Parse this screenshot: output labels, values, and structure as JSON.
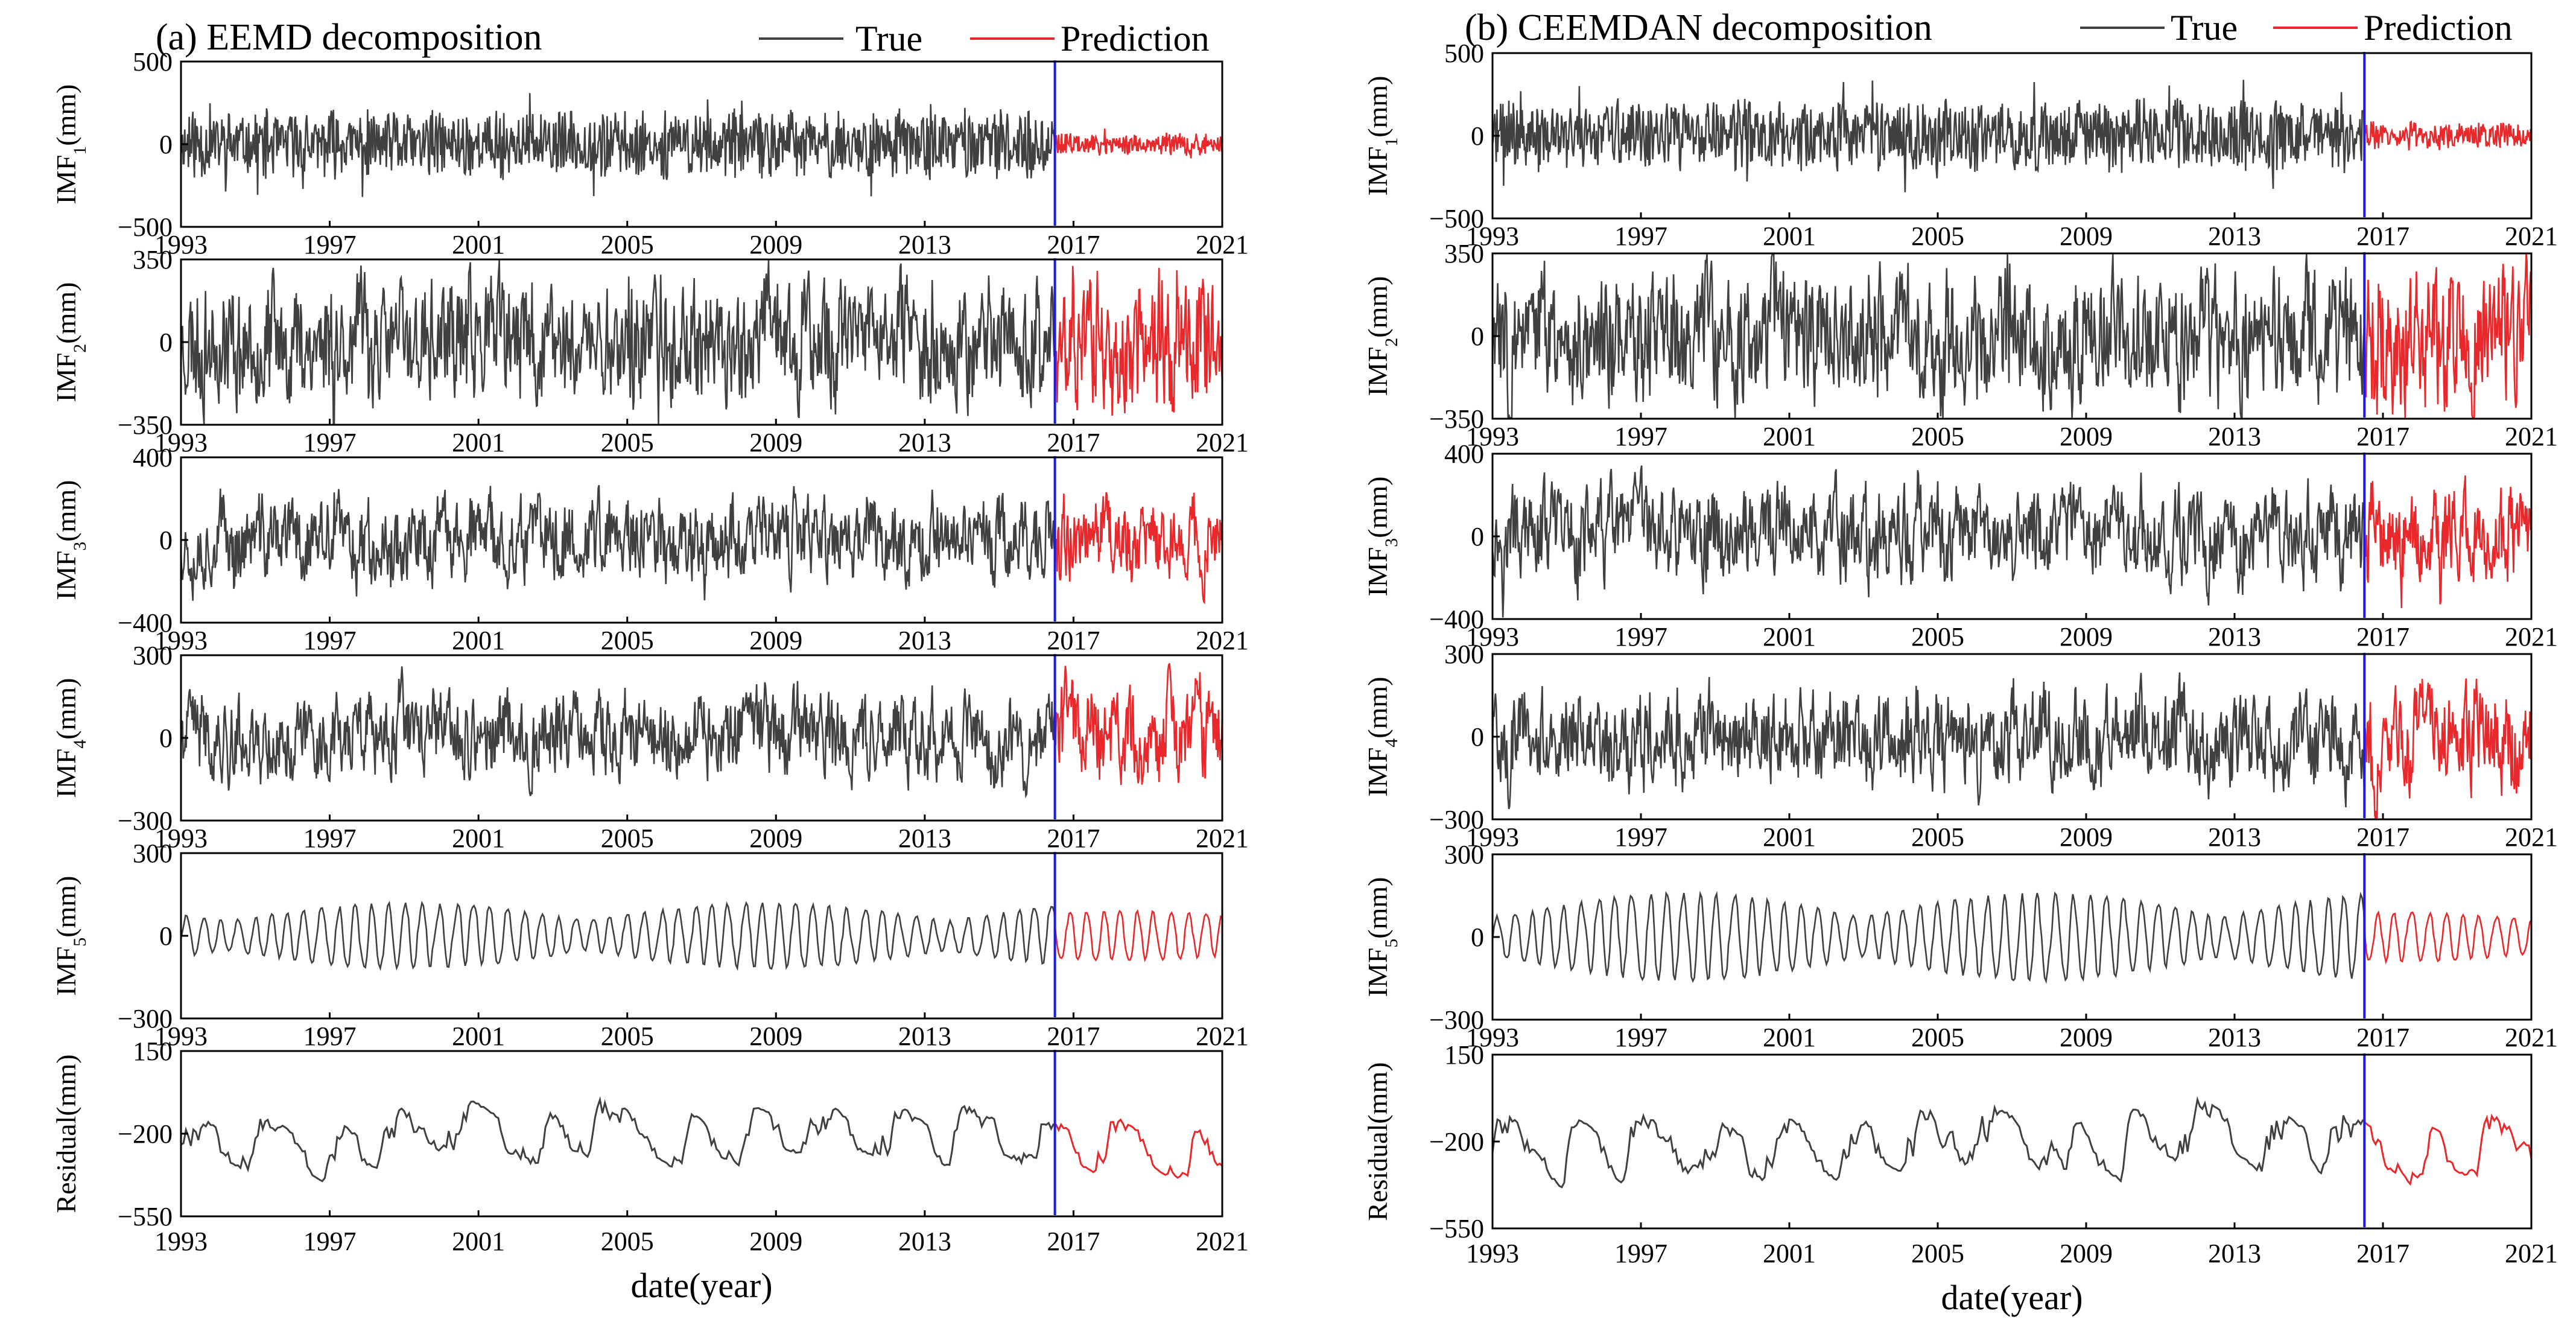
{
  "figure": {
    "background": "#ffffff"
  },
  "colors": {
    "true": "#404040",
    "prediction": "#e8282b",
    "split": "#1a1aee",
    "axis": "#000000"
  },
  "chart_data": [
    {
      "type": "line",
      "title": "(a) EEMD decomposition",
      "legend": {
        "position": "top-right",
        "entries": [
          "True",
          "Prediction"
        ]
      },
      "xlabel": "date(year)",
      "xlim": [
        1993,
        2021
      ],
      "x_ticks": [
        1993,
        1997,
        2001,
        2005,
        2009,
        2013,
        2017,
        2021
      ],
      "x_tick_labels": [
        "1993",
        "1997",
        "2001",
        "2005",
        "2009",
        "2013",
        "2017",
        "2021"
      ],
      "split_x": 2016.5,
      "panels": [
        {
          "ylabel": "IMF",
          "sub": "1",
          "unit": "(mm)",
          "ylim": [
            -500,
            500
          ],
          "yticks": [
            500,
            0,
            -500
          ],
          "ytick_labels": [
            "500",
            "0",
            "−500"
          ],
          "amp_true": 220,
          "amp_pred": 70,
          "style": "dense",
          "smooth": 1,
          "seed": 11
        },
        {
          "ylabel": "IMF",
          "sub": "2",
          "unit": "(mm)",
          "ylim": [
            -350,
            350
          ],
          "yticks": [
            350,
            0,
            -350
          ],
          "ytick_labels": [
            "350",
            "0",
            "−350"
          ],
          "amp_true": 170,
          "amp_pred": 190,
          "style": "dense",
          "smooth": 2,
          "seed": 23
        },
        {
          "ylabel": "IMF",
          "sub": "3",
          "unit": "(mm)",
          "ylim": [
            -400,
            400
          ],
          "yticks": [
            400,
            0,
            -400
          ],
          "ytick_labels": [
            "400",
            "0",
            "−400"
          ],
          "amp_true": 170,
          "amp_pred": 160,
          "style": "dense",
          "smooth": 3,
          "seed": 37
        },
        {
          "ylabel": "IMF",
          "sub": "4",
          "unit": "(mm)",
          "ylim": [
            -300,
            300
          ],
          "yticks": [
            300,
            0,
            -300
          ],
          "ytick_labels": [
            "300",
            "0",
            "−300"
          ],
          "amp_true": 150,
          "amp_pred": 170,
          "style": "dense",
          "smooth": 4,
          "seed": 41
        },
        {
          "ylabel": "IMF",
          "sub": "5",
          "unit": "(mm)",
          "ylim": [
            -300,
            300
          ],
          "yticks": [
            300,
            0,
            -300
          ],
          "ytick_labels": [
            "300",
            "0",
            "−300"
          ],
          "amp_true": 120,
          "amp_pred": 90,
          "style": "osc",
          "smooth": 7,
          "seed": 53
        },
        {
          "ylabel": "Residual",
          "sub": "",
          "unit": "(mm)",
          "ylim": [
            -550,
            150
          ],
          "yticks": [
            150,
            -200,
            -550
          ],
          "ytick_labels": [
            "150",
            "−200",
            "−550"
          ],
          "amp_true": 180,
          "amp_pred": 180,
          "base": -210,
          "style": "resid",
          "smooth": 10,
          "seed": 67
        }
      ]
    },
    {
      "type": "line",
      "title": "(b) CEEMDAN decomposition",
      "legend": {
        "position": "top-right",
        "entries": [
          "True",
          "Prediction"
        ]
      },
      "xlabel": "date(year)",
      "xlim": [
        1993,
        2021
      ],
      "x_ticks": [
        1993,
        1997,
        2001,
        2005,
        2009,
        2013,
        2017,
        2021
      ],
      "x_tick_labels": [
        "1993",
        "1997",
        "2001",
        "2005",
        "2009",
        "2013",
        "2017",
        "2021"
      ],
      "split_x": 2016.5,
      "panels": [
        {
          "ylabel": "IMF",
          "sub": "1",
          "unit": "(mm)",
          "ylim": [
            -500,
            500
          ],
          "yticks": [
            500,
            0,
            -500
          ],
          "ytick_labels": [
            "500",
            "0",
            "−500"
          ],
          "amp_true": 230,
          "amp_pred": 90,
          "style": "dense",
          "smooth": 1,
          "seed": 71
        },
        {
          "ylabel": "IMF",
          "sub": "2",
          "unit": "(mm)",
          "ylim": [
            -350,
            350
          ],
          "yticks": [
            350,
            0,
            -350
          ],
          "ytick_labels": [
            "350",
            "0",
            "−350"
          ],
          "amp_true": 180,
          "amp_pred": 200,
          "style": "dense",
          "smooth": 2,
          "seed": 83
        },
        {
          "ylabel": "IMF",
          "sub": "3",
          "unit": "(mm)",
          "ylim": [
            -400,
            400
          ],
          "yticks": [
            400,
            0,
            -400
          ],
          "ytick_labels": [
            "400",
            "0",
            "−400"
          ],
          "amp_true": 190,
          "amp_pred": 190,
          "style": "dense",
          "smooth": 3,
          "seed": 97
        },
        {
          "ylabel": "IMF",
          "sub": "4",
          "unit": "(mm)",
          "ylim": [
            -300,
            300
          ],
          "yticks": [
            300,
            0,
            -300
          ],
          "ytick_labels": [
            "300",
            "0",
            "−300"
          ],
          "amp_true": 170,
          "amp_pred": 180,
          "style": "dense",
          "smooth": 4,
          "seed": 101
        },
        {
          "ylabel": "IMF",
          "sub": "5",
          "unit": "(mm)",
          "ylim": [
            -300,
            300
          ],
          "yticks": [
            300,
            0,
            -300
          ],
          "ytick_labels": [
            "300",
            "0",
            "−300"
          ],
          "amp_true": 160,
          "amp_pred": 90,
          "style": "osc",
          "smooth": 7,
          "seed": 113
        },
        {
          "ylabel": "Residual",
          "sub": "",
          "unit": "(mm)",
          "ylim": [
            -550,
            150
          ],
          "yticks": [
            150,
            -200,
            -550
          ],
          "ytick_labels": [
            "150",
            "−200",
            "−550"
          ],
          "amp_true": 200,
          "amp_pred": 190,
          "base": -210,
          "style": "resid",
          "smooth": 10,
          "seed": 127
        }
      ]
    }
  ]
}
